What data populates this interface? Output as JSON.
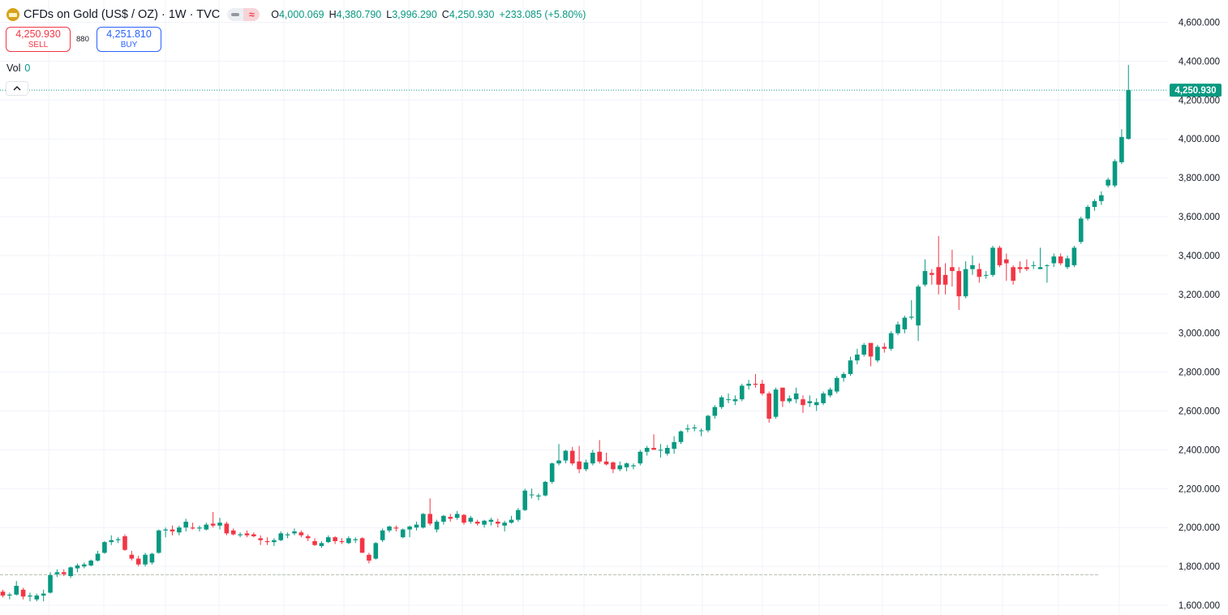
{
  "legend": {
    "symbol_title": "CFDs on Gold (US$ / OZ) · 1W · TVC",
    "open_label": "O",
    "open": "4,000.069",
    "high_label": "H",
    "high": "4,380.790",
    "low_label": "L",
    "low": "3,996.290",
    "close_label": "C",
    "close": "4,250.930",
    "change": "+233.085 (+5.80%)"
  },
  "trade": {
    "sell_price": "4,250.930",
    "sell_label": "SELL",
    "spread": "880",
    "buy_price": "4,251.810",
    "buy_label": "BUY"
  },
  "volume": {
    "label": "Vol",
    "value": "0"
  },
  "icons": {
    "logo": "gold-bars-icon",
    "collapse": "chevron-up-icon"
  },
  "colors": {
    "up": "#089981",
    "down": "#f23645",
    "grid": "#f0f3fa",
    "axis_text": "#131722"
  },
  "chart_data": {
    "type": "candlestick",
    "interval": "1W",
    "ylim": [
      1590,
      4630
    ],
    "y_ticks": [
      1600,
      1800,
      2000,
      2200,
      2400,
      2600,
      2800,
      3000,
      3200,
      3400,
      3600,
      3800,
      4000,
      4200,
      4400,
      4600
    ],
    "y_tick_labels": [
      "1,600.000",
      "1,800.000",
      "2,000.000",
      "2,200.000",
      "2,400.000",
      "2,600.000",
      "2,800.000",
      "3,000.000",
      "3,200.000",
      "3,400.000",
      "3,600.000",
      "3,800.000",
      "4,000.000",
      "4,200.000",
      "4,400.000",
      "4,600.000"
    ],
    "last_price": 4250.93,
    "last_price_label": "4,250.930",
    "reference_line": 1757,
    "candles": [
      {
        "o": 1670,
        "h": 1680,
        "l": 1640,
        "c": 1650
      },
      {
        "o": 1650,
        "h": 1665,
        "l": 1630,
        "c": 1655
      },
      {
        "o": 1655,
        "h": 1725,
        "l": 1650,
        "c": 1700
      },
      {
        "o": 1680,
        "h": 1690,
        "l": 1630,
        "c": 1645
      },
      {
        "o": 1645,
        "h": 1665,
        "l": 1620,
        "c": 1650
      },
      {
        "o": 1630,
        "h": 1660,
        "l": 1620,
        "c": 1650
      },
      {
        "o": 1650,
        "h": 1680,
        "l": 1620,
        "c": 1660
      },
      {
        "o": 1665,
        "h": 1770,
        "l": 1660,
        "c": 1755
      },
      {
        "o": 1760,
        "h": 1785,
        "l": 1745,
        "c": 1770
      },
      {
        "o": 1770,
        "h": 1785,
        "l": 1750,
        "c": 1760
      },
      {
        "o": 1750,
        "h": 1800,
        "l": 1740,
        "c": 1795
      },
      {
        "o": 1790,
        "h": 1815,
        "l": 1770,
        "c": 1805
      },
      {
        "o": 1800,
        "h": 1820,
        "l": 1790,
        "c": 1810
      },
      {
        "o": 1805,
        "h": 1835,
        "l": 1800,
        "c": 1830
      },
      {
        "o": 1830,
        "h": 1880,
        "l": 1825,
        "c": 1865
      },
      {
        "o": 1870,
        "h": 1930,
        "l": 1865,
        "c": 1925
      },
      {
        "o": 1925,
        "h": 1960,
        "l": 1910,
        "c": 1935
      },
      {
        "o": 1935,
        "h": 1950,
        "l": 1920,
        "c": 1940
      },
      {
        "o": 1955,
        "h": 1965,
        "l": 1880,
        "c": 1885
      },
      {
        "o": 1860,
        "h": 1880,
        "l": 1830,
        "c": 1840
      },
      {
        "o": 1840,
        "h": 1855,
        "l": 1800,
        "c": 1810
      },
      {
        "o": 1810,
        "h": 1870,
        "l": 1800,
        "c": 1860
      },
      {
        "o": 1820,
        "h": 1870,
        "l": 1810,
        "c": 1865
      },
      {
        "o": 1870,
        "h": 1990,
        "l": 1865,
        "c": 1985
      },
      {
        "o": 1985,
        "h": 2000,
        "l": 1950,
        "c": 1990
      },
      {
        "o": 1990,
        "h": 2010,
        "l": 1960,
        "c": 1980
      },
      {
        "o": 1975,
        "h": 2010,
        "l": 1960,
        "c": 2000
      },
      {
        "o": 2000,
        "h": 2045,
        "l": 1980,
        "c": 2030
      },
      {
        "o": 2000,
        "h": 2025,
        "l": 1990,
        "c": 1995
      },
      {
        "o": 1995,
        "h": 2010,
        "l": 1980,
        "c": 2000
      },
      {
        "o": 1990,
        "h": 2025,
        "l": 1985,
        "c": 2015
      },
      {
        "o": 2020,
        "h": 2080,
        "l": 2000,
        "c": 2010
      },
      {
        "o": 2010,
        "h": 2050,
        "l": 1990,
        "c": 2025
      },
      {
        "o": 2020,
        "h": 2030,
        "l": 1960,
        "c": 1970
      },
      {
        "o": 1985,
        "h": 1995,
        "l": 1960,
        "c": 1965
      },
      {
        "o": 1960,
        "h": 1975,
        "l": 1950,
        "c": 1965
      },
      {
        "o": 1970,
        "h": 1985,
        "l": 1950,
        "c": 1960
      },
      {
        "o": 1965,
        "h": 1975,
        "l": 1950,
        "c": 1955
      },
      {
        "o": 1945,
        "h": 1960,
        "l": 1910,
        "c": 1935
      },
      {
        "o": 1930,
        "h": 1950,
        "l": 1910,
        "c": 1925
      },
      {
        "o": 1925,
        "h": 1945,
        "l": 1905,
        "c": 1935
      },
      {
        "o": 1935,
        "h": 1980,
        "l": 1930,
        "c": 1970
      },
      {
        "o": 1960,
        "h": 1975,
        "l": 1945,
        "c": 1965
      },
      {
        "o": 1970,
        "h": 1995,
        "l": 1960,
        "c": 1980
      },
      {
        "o": 1975,
        "h": 1985,
        "l": 1950,
        "c": 1960
      },
      {
        "o": 1955,
        "h": 1965,
        "l": 1930,
        "c": 1945
      },
      {
        "o": 1930,
        "h": 1945,
        "l": 1905,
        "c": 1910
      },
      {
        "o": 1905,
        "h": 1930,
        "l": 1895,
        "c": 1920
      },
      {
        "o": 1925,
        "h": 1960,
        "l": 1920,
        "c": 1950
      },
      {
        "o": 1950,
        "h": 1955,
        "l": 1915,
        "c": 1930
      },
      {
        "o": 1930,
        "h": 1945,
        "l": 1915,
        "c": 1925
      },
      {
        "o": 1920,
        "h": 1955,
        "l": 1915,
        "c": 1945
      },
      {
        "o": 1935,
        "h": 1950,
        "l": 1920,
        "c": 1940
      },
      {
        "o": 1945,
        "h": 1950,
        "l": 1870,
        "c": 1870
      },
      {
        "o": 1860,
        "h": 1870,
        "l": 1815,
        "c": 1830
      },
      {
        "o": 1840,
        "h": 1925,
        "l": 1835,
        "c": 1920
      },
      {
        "o": 1935,
        "h": 1995,
        "l": 1925,
        "c": 1985
      },
      {
        "o": 1985,
        "h": 2010,
        "l": 1975,
        "c": 2005
      },
      {
        "o": 2000,
        "h": 2010,
        "l": 1980,
        "c": 1995
      },
      {
        "o": 1950,
        "h": 1995,
        "l": 1945,
        "c": 1990
      },
      {
        "o": 1990,
        "h": 2010,
        "l": 1950,
        "c": 2005
      },
      {
        "o": 2000,
        "h": 2030,
        "l": 1985,
        "c": 2015
      },
      {
        "o": 2000,
        "h": 2075,
        "l": 1995,
        "c": 2070
      },
      {
        "o": 2070,
        "h": 2150,
        "l": 2010,
        "c": 2020
      },
      {
        "o": 1990,
        "h": 2040,
        "l": 1975,
        "c": 2030
      },
      {
        "o": 2030,
        "h": 2065,
        "l": 2015,
        "c": 2060
      },
      {
        "o": 2055,
        "h": 2070,
        "l": 2030,
        "c": 2045
      },
      {
        "o": 2050,
        "h": 2085,
        "l": 2040,
        "c": 2070
      },
      {
        "o": 2065,
        "h": 2070,
        "l": 2015,
        "c": 2025
      },
      {
        "o": 2030,
        "h": 2060,
        "l": 2020,
        "c": 2050
      },
      {
        "o": 2030,
        "h": 2040,
        "l": 2010,
        "c": 2020
      },
      {
        "o": 2015,
        "h": 2040,
        "l": 2000,
        "c": 2035
      },
      {
        "o": 2030,
        "h": 2050,
        "l": 2010,
        "c": 2040
      },
      {
        "o": 2030,
        "h": 2045,
        "l": 2000,
        "c": 2020
      },
      {
        "o": 2010,
        "h": 2035,
        "l": 1980,
        "c": 2025
      },
      {
        "o": 2025,
        "h": 2060,
        "l": 2020,
        "c": 2040
      },
      {
        "o": 2040,
        "h": 2100,
        "l": 2030,
        "c": 2090
      },
      {
        "o": 2090,
        "h": 2200,
        "l": 2085,
        "c": 2190
      },
      {
        "o": 2170,
        "h": 2200,
        "l": 2150,
        "c": 2170
      },
      {
        "o": 2160,
        "h": 2175,
        "l": 2140,
        "c": 2165
      },
      {
        "o": 2165,
        "h": 2240,
        "l": 2160,
        "c": 2235
      },
      {
        "o": 2235,
        "h": 2335,
        "l": 2225,
        "c": 2330
      },
      {
        "o": 2330,
        "h": 2430,
        "l": 2320,
        "c": 2345
      },
      {
        "o": 2345,
        "h": 2400,
        "l": 2330,
        "c": 2395
      },
      {
        "o": 2395,
        "h": 2415,
        "l": 2320,
        "c": 2330
      },
      {
        "o": 2340,
        "h": 2420,
        "l": 2280,
        "c": 2300
      },
      {
        "o": 2300,
        "h": 2350,
        "l": 2290,
        "c": 2335
      },
      {
        "o": 2330,
        "h": 2400,
        "l": 2320,
        "c": 2385
      },
      {
        "o": 2390,
        "h": 2450,
        "l": 2330,
        "c": 2340
      },
      {
        "o": 2340,
        "h": 2385,
        "l": 2320,
        "c": 2325
      },
      {
        "o": 2335,
        "h": 2340,
        "l": 2280,
        "c": 2300
      },
      {
        "o": 2300,
        "h": 2340,
        "l": 2290,
        "c": 2320
      },
      {
        "o": 2310,
        "h": 2335,
        "l": 2290,
        "c": 2330
      },
      {
        "o": 2315,
        "h": 2330,
        "l": 2300,
        "c": 2320
      },
      {
        "o": 2330,
        "h": 2400,
        "l": 2320,
        "c": 2390
      },
      {
        "o": 2390,
        "h": 2420,
        "l": 2370,
        "c": 2410
      },
      {
        "o": 2410,
        "h": 2480,
        "l": 2400,
        "c": 2400
      },
      {
        "o": 2400,
        "h": 2430,
        "l": 2360,
        "c": 2400
      },
      {
        "o": 2380,
        "h": 2425,
        "l": 2370,
        "c": 2410
      },
      {
        "o": 2405,
        "h": 2470,
        "l": 2380,
        "c": 2440
      },
      {
        "o": 2440,
        "h": 2500,
        "l": 2430,
        "c": 2495
      },
      {
        "o": 2505,
        "h": 2530,
        "l": 2490,
        "c": 2510
      },
      {
        "o": 2510,
        "h": 2530,
        "l": 2495,
        "c": 2515
      },
      {
        "o": 2500,
        "h": 2510,
        "l": 2470,
        "c": 2500
      },
      {
        "o": 2500,
        "h": 2580,
        "l": 2490,
        "c": 2575
      },
      {
        "o": 2575,
        "h": 2630,
        "l": 2560,
        "c": 2620
      },
      {
        "o": 2620,
        "h": 2680,
        "l": 2610,
        "c": 2670
      },
      {
        "o": 2660,
        "h": 2690,
        "l": 2640,
        "c": 2660
      },
      {
        "o": 2650,
        "h": 2680,
        "l": 2630,
        "c": 2660
      },
      {
        "o": 2660,
        "h": 2740,
        "l": 2650,
        "c": 2730
      },
      {
        "o": 2730,
        "h": 2760,
        "l": 2710,
        "c": 2740
      },
      {
        "o": 2740,
        "h": 2790,
        "l": 2720,
        "c": 2735
      },
      {
        "o": 2740,
        "h": 2760,
        "l": 2680,
        "c": 2690
      },
      {
        "o": 2690,
        "h": 2700,
        "l": 2540,
        "c": 2560
      },
      {
        "o": 2570,
        "h": 2720,
        "l": 2560,
        "c": 2710
      },
      {
        "o": 2720,
        "h": 2720,
        "l": 2620,
        "c": 2650
      },
      {
        "o": 2650,
        "h": 2680,
        "l": 2640,
        "c": 2665
      },
      {
        "o": 2660,
        "h": 2720,
        "l": 2640,
        "c": 2690
      },
      {
        "o": 2660,
        "h": 2680,
        "l": 2590,
        "c": 2630
      },
      {
        "o": 2640,
        "h": 2680,
        "l": 2620,
        "c": 2650
      },
      {
        "o": 2630,
        "h": 2665,
        "l": 2600,
        "c": 2645
      },
      {
        "o": 2640,
        "h": 2700,
        "l": 2630,
        "c": 2690
      },
      {
        "o": 2680,
        "h": 2720,
        "l": 2670,
        "c": 2710
      },
      {
        "o": 2700,
        "h": 2780,
        "l": 2690,
        "c": 2770
      },
      {
        "o": 2770,
        "h": 2800,
        "l": 2750,
        "c": 2790
      },
      {
        "o": 2790,
        "h": 2880,
        "l": 2780,
        "c": 2860
      },
      {
        "o": 2860,
        "h": 2920,
        "l": 2840,
        "c": 2890
      },
      {
        "o": 2890,
        "h": 2950,
        "l": 2880,
        "c": 2940
      },
      {
        "o": 2950,
        "h": 2950,
        "l": 2830,
        "c": 2880
      },
      {
        "o": 2860,
        "h": 2940,
        "l": 2850,
        "c": 2930
      },
      {
        "o": 2930,
        "h": 2950,
        "l": 2900,
        "c": 2920
      },
      {
        "o": 2920,
        "h": 3010,
        "l": 2910,
        "c": 3000
      },
      {
        "o": 3000,
        "h": 3060,
        "l": 2990,
        "c": 3045
      },
      {
        "o": 3020,
        "h": 3090,
        "l": 3000,
        "c": 3080
      },
      {
        "o": 3080,
        "h": 3170,
        "l": 3070,
        "c": 3085
      },
      {
        "o": 3040,
        "h": 3250,
        "l": 2960,
        "c": 3240
      },
      {
        "o": 3250,
        "h": 3380,
        "l": 3240,
        "c": 3320
      },
      {
        "o": 3310,
        "h": 3330,
        "l": 3250,
        "c": 3300
      },
      {
        "o": 3340,
        "h": 3500,
        "l": 3200,
        "c": 3250
      },
      {
        "o": 3300,
        "h": 3360,
        "l": 3200,
        "c": 3250
      },
      {
        "o": 3340,
        "h": 3430,
        "l": 3240,
        "c": 3320
      },
      {
        "o": 3320,
        "h": 3340,
        "l": 3120,
        "c": 3190
      },
      {
        "o": 3190,
        "h": 3370,
        "l": 3180,
        "c": 3330
      },
      {
        "o": 3330,
        "h": 3400,
        "l": 3300,
        "c": 3350
      },
      {
        "o": 3330,
        "h": 3360,
        "l": 3260,
        "c": 3290
      },
      {
        "o": 3300,
        "h": 3320,
        "l": 3280,
        "c": 3300
      },
      {
        "o": 3300,
        "h": 3450,
        "l": 3290,
        "c": 3440
      },
      {
        "o": 3440,
        "h": 3450,
        "l": 3340,
        "c": 3350
      },
      {
        "o": 3380,
        "h": 3410,
        "l": 3270,
        "c": 3360
      },
      {
        "o": 3340,
        "h": 3350,
        "l": 3250,
        "c": 3270
      },
      {
        "o": 3340,
        "h": 3370,
        "l": 3310,
        "c": 3330
      },
      {
        "o": 3340,
        "h": 3380,
        "l": 3320,
        "c": 3330
      },
      {
        "o": 3350,
        "h": 3370,
        "l": 3330,
        "c": 3350
      },
      {
        "o": 3330,
        "h": 3440,
        "l": 3330,
        "c": 3340
      },
      {
        "o": 3350,
        "h": 3355,
        "l": 3260,
        "c": 3350
      },
      {
        "o": 3360,
        "h": 3410,
        "l": 3340,
        "c": 3395
      },
      {
        "o": 3395,
        "h": 3410,
        "l": 3350,
        "c": 3360
      },
      {
        "o": 3340,
        "h": 3400,
        "l": 3330,
        "c": 3385
      },
      {
        "o": 3350,
        "h": 3450,
        "l": 3340,
        "c": 3440
      },
      {
        "o": 3470,
        "h": 3600,
        "l": 3460,
        "c": 3590
      },
      {
        "o": 3590,
        "h": 3660,
        "l": 3580,
        "c": 3650
      },
      {
        "o": 3650,
        "h": 3690,
        "l": 3630,
        "c": 3680
      },
      {
        "o": 3680,
        "h": 3730,
        "l": 3660,
        "c": 3710
      },
      {
        "o": 3760,
        "h": 3800,
        "l": 3750,
        "c": 3790
      },
      {
        "o": 3760,
        "h": 3895,
        "l": 3750,
        "c": 3885
      },
      {
        "o": 3880,
        "h": 4050,
        "l": 3870,
        "c": 4010
      },
      {
        "o": 4000.069,
        "h": 4380.79,
        "l": 3996.29,
        "c": 4250.93
      }
    ]
  }
}
